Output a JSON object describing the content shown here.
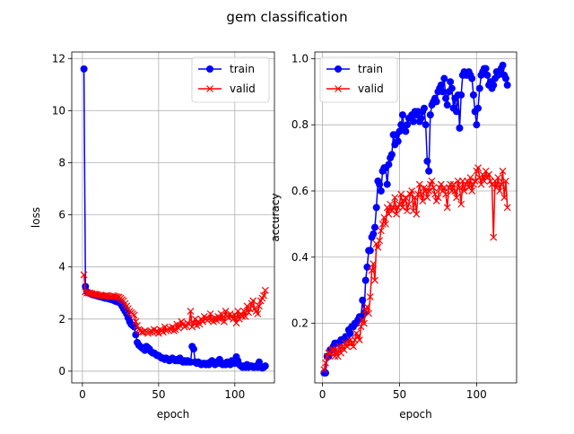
{
  "chart_data": {
    "title": "gem classification",
    "charts": [
      {
        "type": "line",
        "xlabel": "epoch",
        "ylabel": "loss",
        "xlim": [
          -7,
          126
        ],
        "ylim": [
          -0.45,
          12.25
        ],
        "xticks": [
          0,
          50,
          100
        ],
        "yticks": [
          0,
          2,
          4,
          6,
          8,
          10,
          12
        ],
        "grid": true,
        "legend": "top-right",
        "series": [
          {
            "name": "train",
            "color": "#0000ff",
            "marker": "circle",
            "x": [
              1,
              2,
              3,
              4,
              5,
              6,
              7,
              8,
              9,
              10,
              11,
              12,
              13,
              14,
              15,
              16,
              17,
              18,
              19,
              20,
              21,
              22,
              23,
              24,
              25,
              26,
              27,
              28,
              29,
              30,
              31,
              32,
              33,
              34,
              35,
              36,
              37,
              38,
              39,
              40,
              41,
              42,
              43,
              44,
              45,
              46,
              47,
              48,
              49,
              50,
              51,
              52,
              53,
              54,
              55,
              56,
              57,
              58,
              59,
              60,
              61,
              62,
              63,
              64,
              65,
              66,
              67,
              68,
              69,
              70,
              71,
              72,
              73,
              74,
              75,
              76,
              77,
              78,
              79,
              80,
              81,
              82,
              83,
              84,
              85,
              86,
              87,
              88,
              89,
              90,
              91,
              92,
              93,
              94,
              95,
              96,
              97,
              98,
              99,
              100,
              101,
              102,
              103,
              104,
              105,
              106,
              107,
              108,
              109,
              110,
              111,
              112,
              113,
              114,
              115,
              116,
              117,
              118,
              119,
              120
            ],
            "y": [
              11.6,
              3.25,
              3.05,
              3.0,
              2.98,
              2.95,
              2.93,
              2.92,
              2.9,
              2.88,
              2.87,
              2.85,
              2.84,
              2.82,
              2.8,
              2.8,
              2.78,
              2.76,
              2.75,
              2.73,
              2.7,
              2.68,
              2.66,
              2.64,
              2.6,
              2.5,
              2.4,
              2.3,
              2.2,
              2.05,
              1.9,
              1.8,
              1.75,
              1.7,
              1.4,
              1.1,
              1.0,
              0.95,
              0.9,
              0.85,
              0.8,
              0.95,
              0.9,
              0.85,
              0.75,
              0.7,
              0.7,
              0.65,
              0.6,
              0.6,
              0.55,
              0.5,
              0.5,
              0.45,
              0.5,
              0.45,
              0.4,
              0.45,
              0.5,
              0.45,
              0.4,
              0.45,
              0.4,
              0.5,
              0.4,
              0.35,
              0.4,
              0.35,
              0.4,
              0.35,
              0.35,
              0.95,
              0.85,
              0.35,
              0.3,
              0.35,
              0.3,
              0.25,
              0.3,
              0.3,
              0.25,
              0.3,
              0.25,
              0.35,
              0.4,
              0.3,
              0.25,
              0.35,
              0.3,
              0.45,
              0.3,
              0.25,
              0.3,
              0.25,
              0.35,
              0.3,
              0.25,
              0.4,
              0.35,
              0.3,
              0.55,
              0.4,
              0.25,
              0.2,
              0.15,
              0.2,
              0.15,
              0.25,
              0.15,
              0.2,
              0.2,
              0.15,
              0.15,
              0.2,
              0.15,
              0.35,
              0.15,
              0.12,
              0.15,
              0.2
            ]
          },
          {
            "name": "valid",
            "color": "#ff0000",
            "marker": "x",
            "x": [
              1,
              2,
              3,
              4,
              5,
              6,
              7,
              8,
              9,
              10,
              11,
              12,
              13,
              14,
              15,
              16,
              17,
              18,
              19,
              20,
              21,
              22,
              23,
              24,
              25,
              26,
              27,
              28,
              29,
              30,
              31,
              32,
              33,
              34,
              35,
              36,
              37,
              38,
              39,
              40,
              41,
              42,
              43,
              44,
              45,
              46,
              47,
              48,
              49,
              50,
              51,
              52,
              53,
              54,
              55,
              56,
              57,
              58,
              59,
              60,
              61,
              62,
              63,
              64,
              65,
              66,
              67,
              68,
              69,
              70,
              71,
              72,
              73,
              74,
              75,
              76,
              77,
              78,
              79,
              80,
              81,
              82,
              83,
              84,
              85,
              86,
              87,
              88,
              89,
              90,
              91,
              92,
              93,
              94,
              95,
              96,
              97,
              98,
              99,
              100,
              101,
              102,
              103,
              104,
              105,
              106,
              107,
              108,
              109,
              110,
              111,
              112,
              113,
              114,
              115,
              116,
              117,
              118,
              119,
              120
            ],
            "y": [
              3.7,
              3.05,
              3.0,
              3.0,
              3.0,
              2.98,
              2.95,
              2.96,
              2.95,
              2.93,
              2.9,
              2.92,
              2.9,
              2.88,
              2.9,
              2.9,
              2.88,
              2.86,
              2.85,
              2.9,
              2.88,
              2.86,
              2.85,
              2.84,
              2.8,
              2.75,
              2.7,
              2.6,
              2.5,
              2.4,
              2.3,
              2.25,
              2.2,
              2.15,
              1.9,
              1.75,
              1.6,
              1.55,
              1.5,
              1.5,
              1.55,
              1.5,
              1.45,
              1.5,
              1.55,
              1.5,
              1.6,
              1.5,
              1.55,
              1.45,
              1.6,
              1.55,
              1.5,
              1.7,
              1.55,
              1.6,
              1.65,
              1.6,
              1.7,
              1.55,
              1.6,
              1.8,
              1.65,
              1.75,
              1.9,
              1.8,
              1.7,
              1.75,
              1.85,
              1.8,
              2.3,
              1.7,
              1.85,
              2.0,
              1.75,
              1.9,
              1.8,
              2.0,
              1.9,
              2.1,
              2.0,
              1.95,
              2.0,
              2.2,
              2.0,
              1.9,
              2.05,
              1.95,
              2.1,
              2.0,
              2.2,
              2.05,
              1.9,
              2.3,
              2.1,
              2.05,
              2.2,
              2.1,
              2.0,
              2.15,
              1.85,
              2.3,
              2.0,
              2.2,
              2.1,
              2.3,
              2.1,
              2.5,
              2.25,
              2.4,
              2.6,
              2.7,
              2.4,
              2.3,
              2.2,
              2.5,
              2.7,
              2.8,
              2.9,
              3.1
            ]
          }
        ]
      },
      {
        "type": "line",
        "xlabel": "epoch",
        "ylabel": "accuracy",
        "xlim": [
          -5,
          126
        ],
        "ylim": [
          0.02,
          1.02
        ],
        "xticks": [
          0,
          50,
          100
        ],
        "yticks": [
          0.2,
          0.4,
          0.6,
          0.8,
          1.0
        ],
        "grid": true,
        "legend": "top-left",
        "series": [
          {
            "name": "train",
            "color": "#0000ff",
            "marker": "circle",
            "x": [
              1,
              2,
              3,
              4,
              5,
              6,
              7,
              8,
              9,
              10,
              11,
              12,
              13,
              14,
              15,
              16,
              17,
              18,
              19,
              20,
              21,
              22,
              23,
              24,
              25,
              26,
              27,
              28,
              29,
              30,
              31,
              32,
              33,
              34,
              35,
              36,
              37,
              38,
              39,
              40,
              41,
              42,
              43,
              44,
              45,
              46,
              47,
              48,
              49,
              50,
              51,
              52,
              53,
              54,
              55,
              56,
              57,
              58,
              59,
              60,
              61,
              62,
              63,
              64,
              65,
              66,
              67,
              68,
              69,
              70,
              71,
              72,
              73,
              74,
              75,
              76,
              77,
              78,
              79,
              80,
              81,
              82,
              83,
              84,
              85,
              86,
              87,
              88,
              89,
              90,
              91,
              92,
              93,
              94,
              95,
              96,
              97,
              98,
              99,
              100,
              101,
              102,
              103,
              104,
              105,
              106,
              107,
              108,
              109,
              110,
              111,
              112,
              113,
              114,
              115,
              116,
              117,
              118,
              119,
              120
            ],
            "y": [
              0.05,
              0.05,
              0.1,
              0.1,
              0.12,
              0.12,
              0.13,
              0.14,
              0.14,
              0.14,
              0.14,
              0.15,
              0.15,
              0.15,
              0.16,
              0.16,
              0.18,
              0.17,
              0.19,
              0.19,
              0.2,
              0.2,
              0.21,
              0.22,
              0.22,
              0.27,
              0.23,
              0.33,
              0.37,
              0.42,
              0.42,
              0.46,
              0.47,
              0.49,
              0.55,
              0.63,
              0.62,
              0.6,
              0.66,
              0.67,
              0.67,
              0.62,
              0.68,
              0.7,
              0.71,
              0.77,
              0.74,
              0.77,
              0.75,
              0.78,
              0.8,
              0.83,
              0.79,
              0.78,
              0.8,
              0.82,
              0.82,
              0.83,
              0.81,
              0.84,
              0.83,
              0.84,
              0.81,
              0.82,
              0.84,
              0.85,
              0.8,
              0.69,
              0.66,
              0.83,
              0.86,
              0.87,
              0.88,
              0.87,
              0.9,
              0.91,
              0.92,
              0.9,
              0.94,
              0.88,
              0.86,
              0.9,
              0.93,
              0.91,
              0.85,
              0.88,
              0.84,
              0.89,
              0.79,
              0.89,
              0.95,
              0.96,
              0.95,
              0.95,
              0.96,
              0.95,
              0.94,
              0.89,
              0.84,
              0.8,
              0.85,
              0.91,
              0.95,
              0.96,
              0.97,
              0.97,
              0.95,
              0.92,
              0.93,
              0.91,
              0.92,
              0.94,
              0.96,
              0.95,
              0.96,
              0.97,
              0.98,
              0.95,
              0.94,
              0.92
            ]
          },
          {
            "name": "valid",
            "color": "#ff0000",
            "marker": "x",
            "x": [
              1,
              2,
              3,
              4,
              5,
              6,
              7,
              8,
              9,
              10,
              11,
              12,
              13,
              14,
              15,
              16,
              17,
              18,
              19,
              20,
              21,
              22,
              23,
              24,
              25,
              26,
              27,
              28,
              29,
              30,
              31,
              32,
              33,
              34,
              35,
              36,
              37,
              38,
              39,
              40,
              41,
              42,
              43,
              44,
              45,
              46,
              47,
              48,
              49,
              50,
              51,
              52,
              53,
              54,
              55,
              56,
              57,
              58,
              59,
              60,
              61,
              62,
              63,
              64,
              65,
              66,
              67,
              68,
              69,
              70,
              71,
              72,
              73,
              74,
              75,
              76,
              77,
              78,
              79,
              80,
              81,
              82,
              83,
              84,
              85,
              86,
              87,
              88,
              89,
              90,
              91,
              92,
              93,
              94,
              95,
              96,
              97,
              98,
              99,
              100,
              101,
              102,
              103,
              104,
              105,
              106,
              107,
              108,
              109,
              110,
              111,
              112,
              113,
              114,
              115,
              116,
              117,
              118,
              119,
              120
            ],
            "y": [
              0.06,
              0.08,
              0.1,
              0.11,
              0.11,
              0.12,
              0.12,
              0.1,
              0.12,
              0.1,
              0.13,
              0.11,
              0.13,
              0.12,
              0.14,
              0.13,
              0.14,
              0.15,
              0.14,
              0.13,
              0.15,
              0.17,
              0.16,
              0.15,
              0.19,
              0.21,
              0.2,
              0.24,
              0.25,
              0.23,
              0.28,
              0.36,
              0.38,
              0.33,
              0.44,
              0.43,
              0.45,
              0.48,
              0.5,
              0.52,
              0.5,
              0.55,
              0.53,
              0.56,
              0.54,
              0.55,
              0.58,
              0.53,
              0.55,
              0.56,
              0.59,
              0.55,
              0.57,
              0.58,
              0.54,
              0.56,
              0.59,
              0.6,
              0.54,
              0.58,
              0.53,
              0.59,
              0.62,
              0.59,
              0.57,
              0.61,
              0.6,
              0.58,
              0.6,
              0.62,
              0.63,
              0.61,
              0.59,
              0.57,
              0.58,
              0.61,
              0.62,
              0.6,
              0.61,
              0.59,
              0.55,
              0.61,
              0.62,
              0.6,
              0.62,
              0.6,
              0.58,
              0.63,
              0.61,
              0.56,
              0.63,
              0.6,
              0.62,
              0.63,
              0.61,
              0.64,
              0.6,
              0.62,
              0.63,
              0.66,
              0.67,
              0.64,
              0.62,
              0.65,
              0.63,
              0.66,
              0.64,
              0.65,
              0.63,
              0.62,
              0.46,
              0.63,
              0.61,
              0.64,
              0.6,
              0.62,
              0.66,
              0.58,
              0.63,
              0.55
            ]
          }
        ]
      }
    ]
  }
}
